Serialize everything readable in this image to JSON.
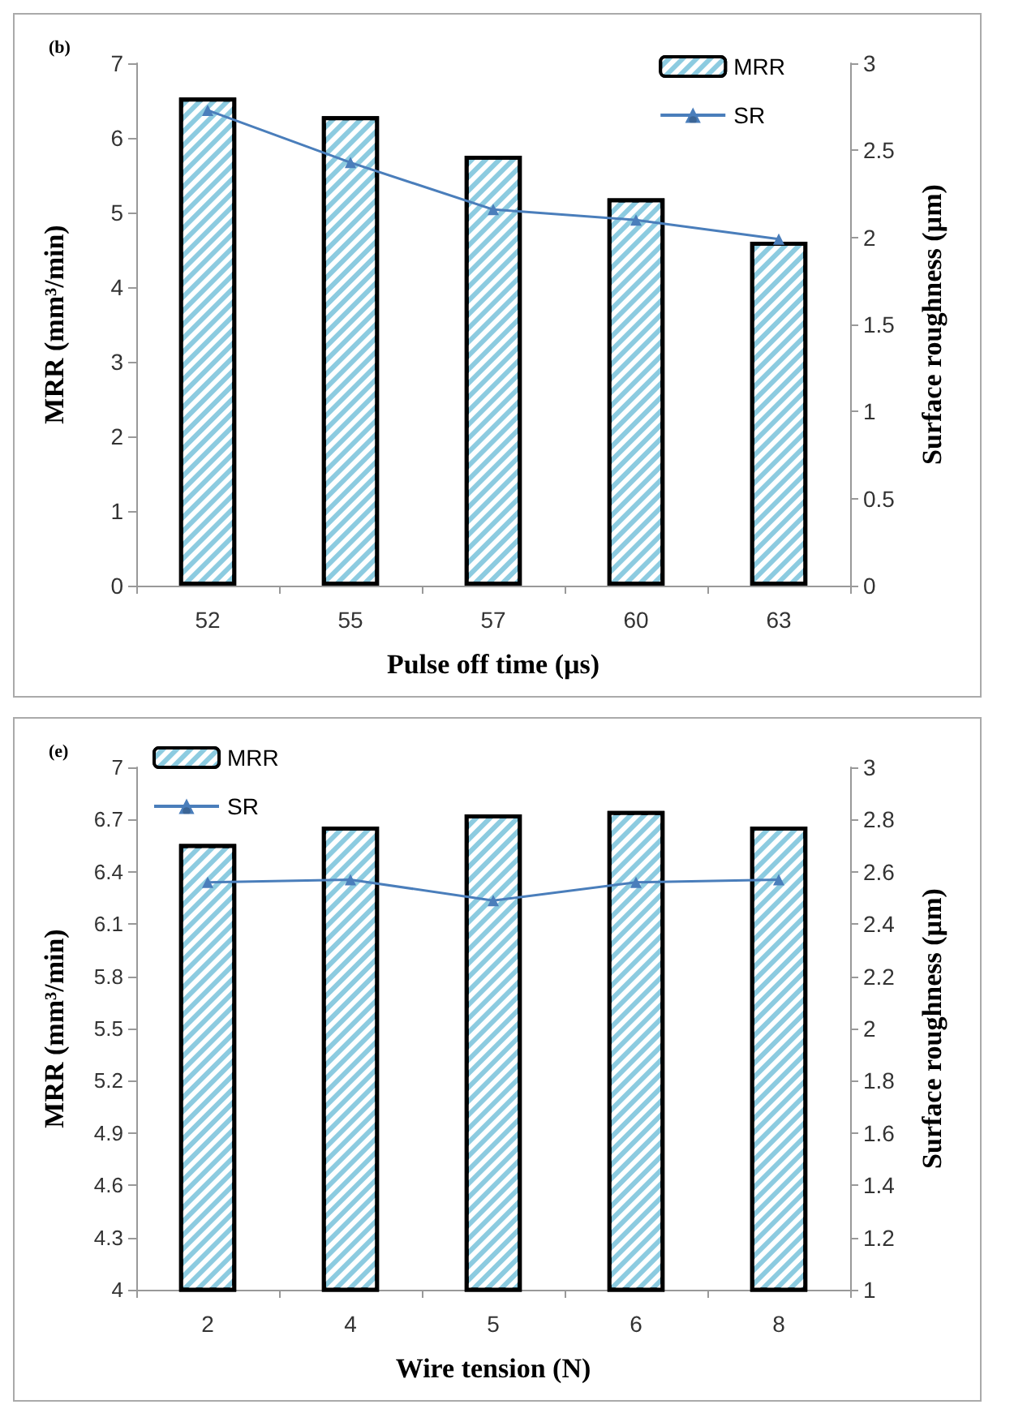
{
  "chart_data": [
    {
      "type": "bar",
      "title": "(b)",
      "xlabel": "Pulse off time (µs)",
      "ylabel": "MRR (mm³/min)",
      "y2label": "Surface roughness (µm)",
      "categories": [
        "52",
        "55",
        "57",
        "60",
        "63"
      ],
      "series": [
        {
          "name": "MRR",
          "color": "#8ccbe0",
          "values": [
            6.54,
            6.29,
            5.76,
            5.19,
            4.61
          ]
        },
        {
          "name": "SR",
          "type": "line",
          "axis": "y2",
          "color": "#4a7ebb",
          "marker": "triangle",
          "values": [
            2.73,
            2.43,
            2.16,
            2.1,
            1.99
          ]
        }
      ],
      "ylim": [
        0,
        7
      ],
      "yticks": [
        0,
        1,
        2,
        3,
        4,
        5,
        6,
        7
      ],
      "y2lim": [
        0,
        3
      ],
      "y2ticks": [
        0,
        0.5,
        1,
        1.5,
        2,
        2.5,
        3
      ],
      "grid": false,
      "legend": "top right"
    },
    {
      "type": "bar",
      "title": "(e)",
      "xlabel": "Wire tension (N)",
      "ylabel": "MRR (mm³/min)",
      "y2label": "Surface roughness (µm)",
      "categories": [
        "2",
        "4",
        "5",
        "6",
        "8"
      ],
      "series": [
        {
          "name": "MRR",
          "color": "#8ccbe0",
          "values": [
            6.56,
            6.66,
            6.73,
            6.75,
            6.66
          ]
        },
        {
          "name": "SR",
          "type": "line",
          "axis": "y2",
          "color": "#4a7ebb",
          "marker": "triangle",
          "values": [
            2.56,
            2.57,
            2.49,
            2.56,
            2.57
          ]
        }
      ],
      "ylim": [
        4,
        7
      ],
      "yticks": [
        4,
        4.3,
        4.6,
        4.9,
        5.2,
        5.5,
        5.8,
        6.1,
        6.4,
        6.7,
        7
      ],
      "y2lim": [
        1,
        3
      ],
      "y2ticks": [
        1,
        1.2,
        1.4,
        1.6,
        1.8,
        2,
        2.2,
        2.4,
        2.6,
        2.8,
        3
      ],
      "grid": false,
      "legend": "top left"
    }
  ]
}
